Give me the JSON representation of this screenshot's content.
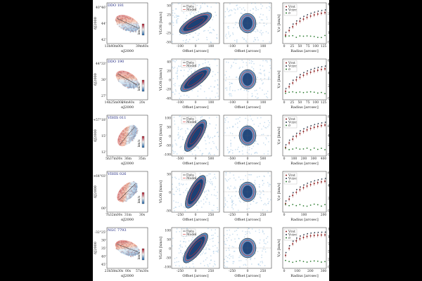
{
  "figure": {
    "axis_labels": {
      "dec": "δJ2000",
      "ra": "αJ2000",
      "vlos": "VLOS [km/s]",
      "offset": "Offset [arcsec]",
      "radius": "Radius [arcsec]",
      "vsigma": "V,σ [km/s]"
    },
    "legend_pv": [
      "Data",
      "Model"
    ],
    "legend_rc": [
      "Vrot",
      "Vcirc",
      "σ"
    ],
    "rows": [
      {
        "galaxy": "DDO 181",
        "dec_ticks": [
          "40°46'",
          "44'",
          "42'"
        ],
        "ra_ticks": [
          "13h40m00s",
          "39m40s"
        ],
        "colorbar": "km/s",
        "pv_ticks_x": [
          "-100",
          "0",
          "100"
        ],
        "pv_ticks_y": [
          "50",
          "25",
          "0",
          "-25",
          "-50"
        ],
        "pv2_ticks_x": [
          "-100",
          "0",
          "100"
        ],
        "rc_ticks_x": [
          "0",
          "25",
          "50",
          "75",
          "100",
          "125"
        ],
        "rc_ticks_y": [
          "0",
          "10",
          "20",
          "30",
          "40"
        ]
      },
      {
        "galaxy": "DDO 190",
        "dec_ticks": [
          "44°33'",
          "30'",
          "27'"
        ],
        "ra_ticks": [
          "14h25m00s",
          "24m40s",
          "20s"
        ],
        "colorbar": "km/s",
        "pv_ticks_x": [
          "-100",
          "0",
          "100"
        ],
        "pv_ticks_y": [
          "40",
          "20",
          "0",
          "-20",
          "-40"
        ],
        "pv2_ticks_x": [
          "-100",
          "0",
          "100"
        ],
        "rc_ticks_x": [
          "0",
          "25",
          "50",
          "75",
          "100",
          "125"
        ],
        "rc_ticks_y": [
          "0",
          "20",
          "40",
          "60"
        ]
      },
      {
        "galaxy": "VIHIS 011",
        "dec_ticks": [
          "+57°18'",
          "15'",
          "12'"
        ],
        "ra_ticks": [
          "5h37m00s",
          "36m",
          "35m"
        ],
        "colorbar": "km/s",
        "pv_ticks_x": [
          "-500",
          "0",
          "500"
        ],
        "pv_ticks_y": [
          "100",
          "50",
          "0",
          "-50",
          "-100"
        ],
        "pv2_ticks_x": [
          "-500",
          "0",
          "500"
        ],
        "rc_ticks_x": [
          "0",
          "100",
          "200",
          "300",
          "400"
        ],
        "rc_ticks_y": [
          "0",
          "20",
          "40",
          "60",
          "80"
        ]
      },
      {
        "galaxy": "VIHIS 026",
        "dec_ticks": [
          "+64°03'",
          "00'"
        ],
        "ra_ticks": [
          "7h32m00s",
          "31m",
          "30s"
        ],
        "colorbar": "km/s",
        "pv_ticks_x": [
          "-250",
          "0",
          "250"
        ],
        "pv_ticks_y": [
          "50",
          "0",
          "-50"
        ],
        "pv2_ticks_x": [
          "-250",
          "0",
          "250"
        ],
        "rc_ticks_x": [
          "0",
          "100",
          "200"
        ],
        "rc_ticks_y": [
          "0",
          "20",
          "40",
          "60"
        ]
      },
      {
        "galaxy": "NGC 7793",
        "dec_ticks": [
          "-32°25'",
          "30'",
          "35'",
          "40'",
          "45'"
        ],
        "ra_ticks": [
          "23h58m30s",
          "00s",
          "57m30s"
        ],
        "colorbar": "km/s",
        "pv_ticks_x": [
          "-250",
          "0",
          "250"
        ],
        "pv_ticks_y": [
          "100",
          "50",
          "0",
          "-50",
          "-100"
        ],
        "pv2_ticks_x": [
          "-250",
          "0",
          "250"
        ],
        "rc_ticks_x": [
          "0",
          "100",
          "200",
          "300"
        ],
        "rc_ticks_y": [
          "0",
          "25",
          "50",
          "75",
          "100",
          "125"
        ]
      }
    ]
  }
}
